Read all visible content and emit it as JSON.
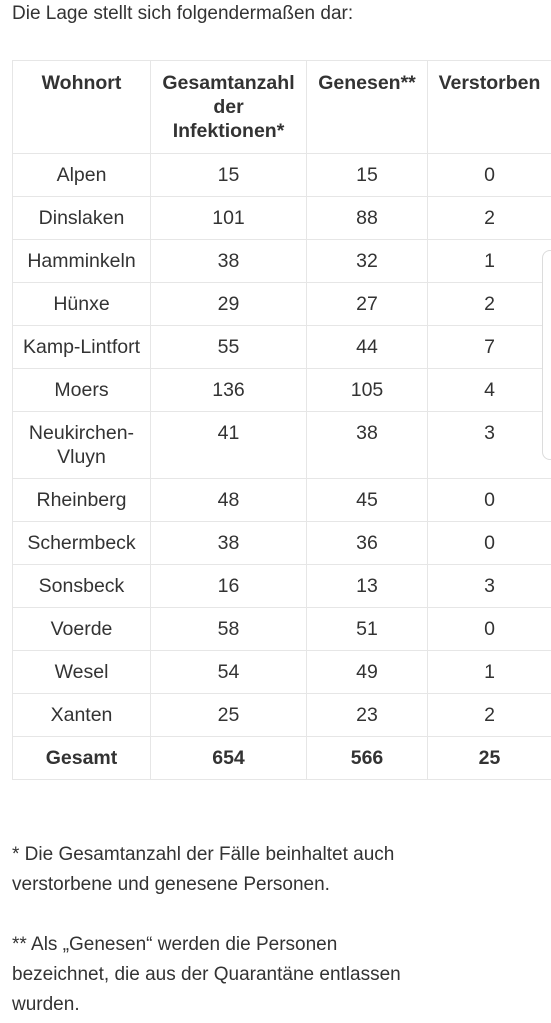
{
  "intro": "Die Lage stellt sich folgendermaßen dar:",
  "table": {
    "headers": [
      "Wohnort",
      "Gesamtanzahl der Infektionen*",
      "Genesen**",
      "Verstorben"
    ],
    "rows": [
      [
        "Alpen",
        "15",
        "15",
        "0"
      ],
      [
        "Dinslaken",
        "101",
        "88",
        "2"
      ],
      [
        "Hamminkeln",
        "38",
        "32",
        "1"
      ],
      [
        "Hünxe",
        "29",
        "27",
        "2"
      ],
      [
        "Kamp-Lintfort",
        "55",
        "44",
        "7"
      ],
      [
        "Moers",
        "136",
        "105",
        "4"
      ],
      [
        "Neukirchen-Vluyn",
        "41",
        "38",
        "3"
      ],
      [
        "Rheinberg",
        "48",
        "45",
        "0"
      ],
      [
        "Schermbeck",
        "38",
        "36",
        "0"
      ],
      [
        "Sonsbeck",
        "16",
        "13",
        "3"
      ],
      [
        "Voerde",
        "58",
        "51",
        "0"
      ],
      [
        "Wesel",
        "54",
        "49",
        "1"
      ],
      [
        "Xanten",
        "25",
        "23",
        "2"
      ]
    ],
    "total": [
      "Gesamt",
      "654",
      "566",
      "25"
    ]
  },
  "footnotes": {
    "note1": "* Die Gesamtanzahl der Fälle beinhaltet auch verstorbene und genesene Personen.",
    "note2": "** Als „Genesen“ werden die Personen bezeichnet, die aus der Quarantäne entlassen wurden."
  }
}
